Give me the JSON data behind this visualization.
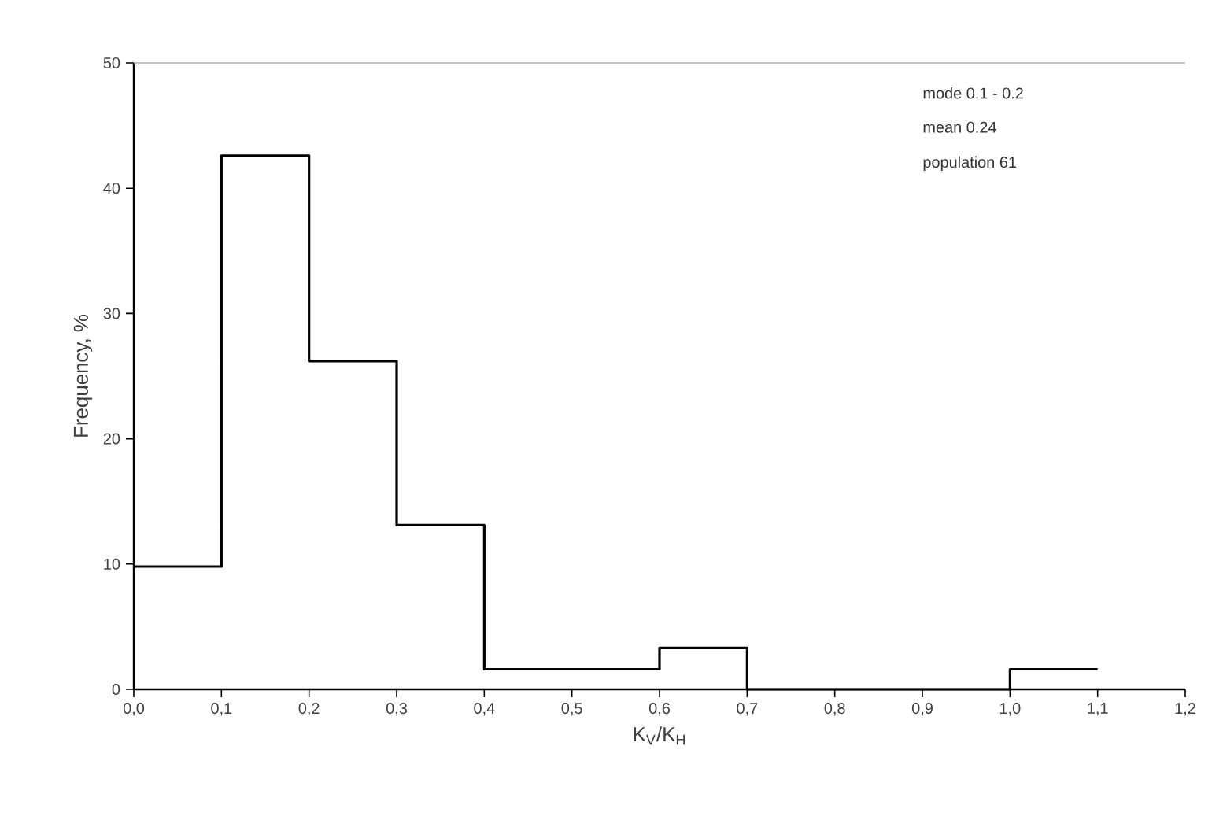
{
  "chart_data": {
    "type": "histogram",
    "xlabel": "K$_{V}$/K$_{H}$",
    "ylabel": "Frequency, %",
    "bins": [
      0,
      0.1,
      0.2,
      0.3,
      0.4,
      0.5,
      0.6,
      0.7,
      0.8,
      0.9,
      1.0,
      1.1
    ],
    "values": [
      9.8,
      42.6,
      26.2,
      13.1,
      1.6,
      1.6,
      3.3,
      0,
      0,
      0,
      1.6
    ],
    "color": "#000000",
    "xlim": [
      0,
      1.2
    ],
    "xticks": [
      {
        "value": 0,
        "label": "0,0"
      },
      {
        "value": 0.1,
        "label": "0,1"
      },
      {
        "value": 0.2,
        "label": "0,2"
      },
      {
        "value": 0.3,
        "label": "0,3"
      },
      {
        "value": 0.4,
        "label": "0,4"
      },
      {
        "value": 0.5,
        "label": "0,5"
      },
      {
        "value": 0.6,
        "label": "0,6"
      },
      {
        "value": 0.7,
        "label": "0,7"
      },
      {
        "value": 0.8,
        "label": "0,8"
      },
      {
        "value": 0.9,
        "label": "0,9"
      },
      {
        "value": 1.0,
        "label": "1,0"
      },
      {
        "value": 1.1,
        "label": "1,1"
      },
      {
        "value": 1.2,
        "label": "1,2"
      }
    ],
    "ylim": [
      0,
      50
    ],
    "yticks": [
      0,
      10,
      20,
      30,
      40,
      50
    ],
    "annotations": [
      "mode 0.1 - 0.2",
      "mean 0.24",
      "population 61"
    ]
  }
}
